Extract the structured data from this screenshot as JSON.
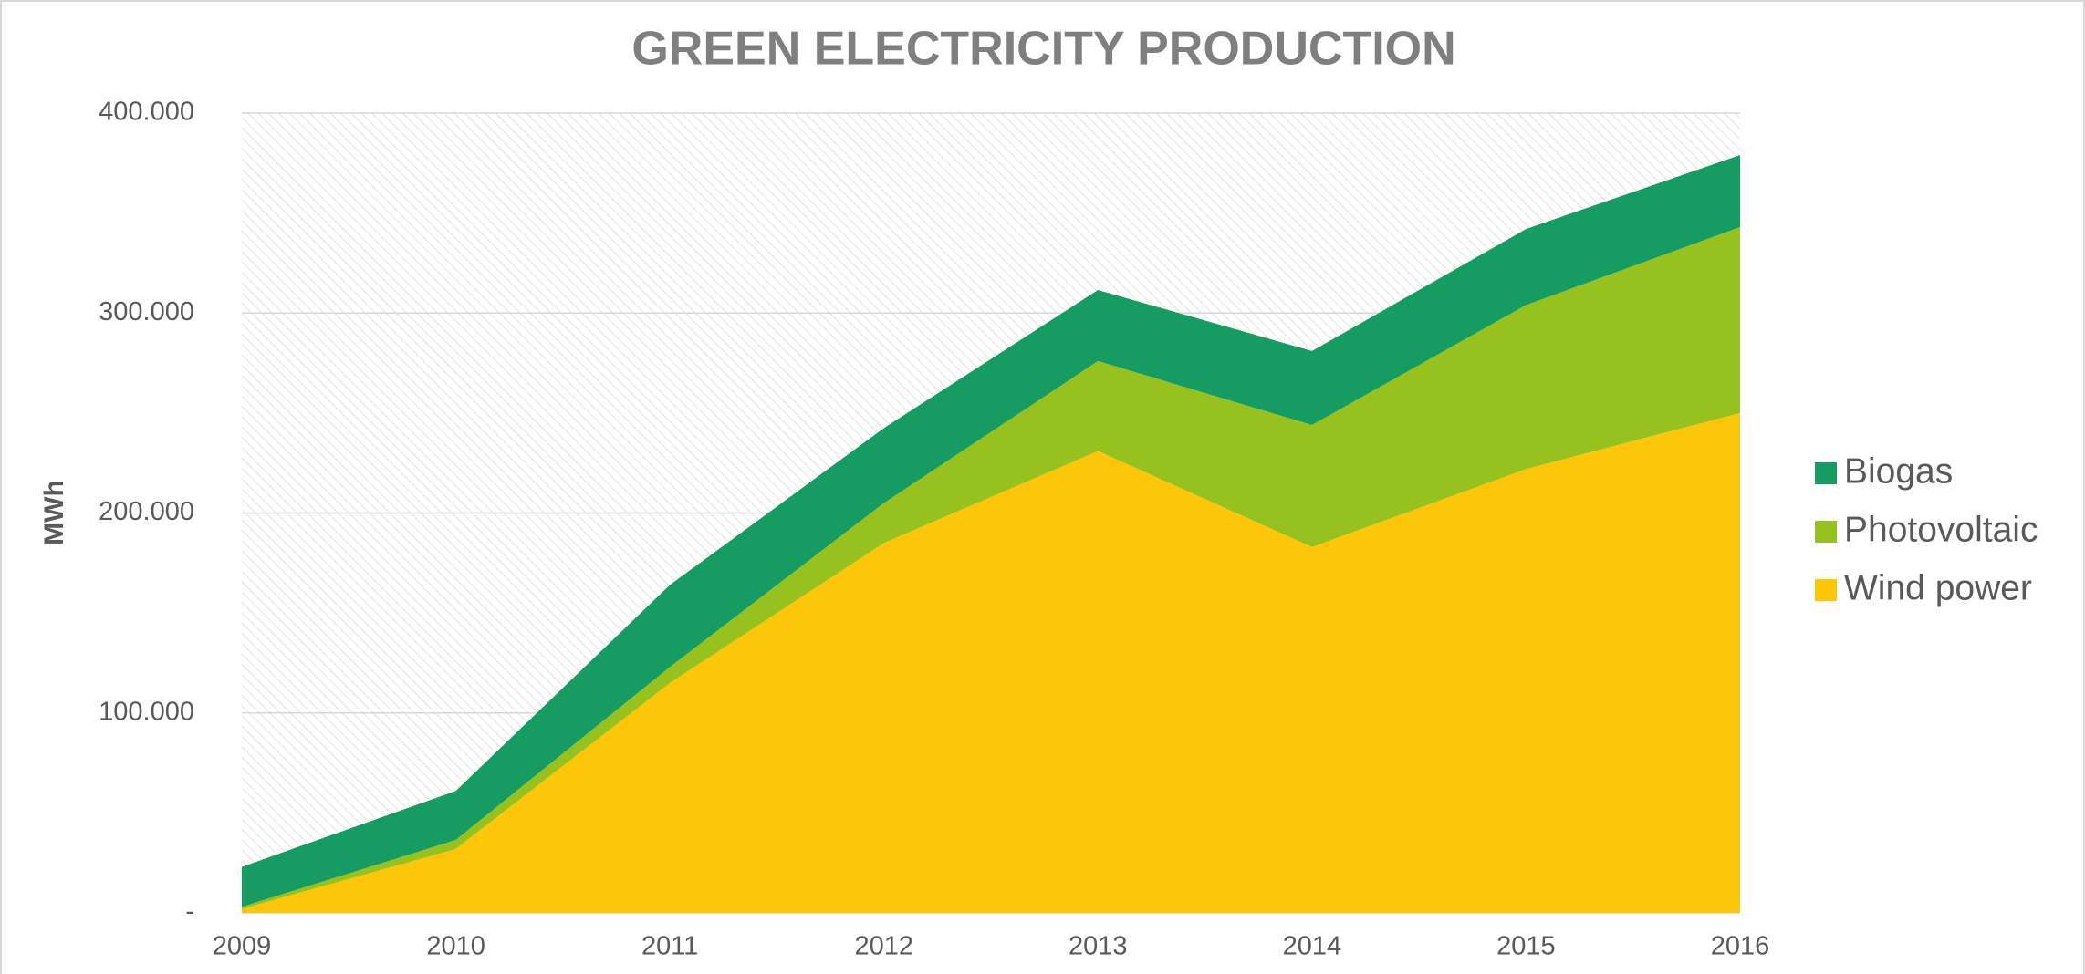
{
  "chart_data": {
    "type": "stacked_area",
    "title": "GREEN ELECTRICITY PRODUCTION",
    "y_label": "MWh",
    "categories": [
      "2009",
      "2010",
      "2011",
      "2012",
      "2013",
      "2014",
      "2015",
      "2016"
    ],
    "series": [
      {
        "name": "Wind power",
        "color": "#fcc60a",
        "values": [
          2000,
          32000,
          115000,
          185000,
          231000,
          183000,
          222000,
          250000
        ]
      },
      {
        "name": "Photovoltaic",
        "color": "#96c11f",
        "values": [
          1000,
          4500,
          8000,
          20000,
          45000,
          61000,
          82000,
          93000
        ]
      },
      {
        "name": "Biogas",
        "color": "#169b62",
        "values": [
          20000,
          24500,
          41000,
          37500,
          35500,
          37000,
          38000,
          36000
        ]
      }
    ],
    "ylim": [
      0,
      400000
    ],
    "yticks": [
      {
        "value": 0,
        "label": "-"
      },
      {
        "value": 100000,
        "label": "100.000"
      },
      {
        "value": 200000,
        "label": "200.000"
      },
      {
        "value": 300000,
        "label": "300.000"
      },
      {
        "value": 400000,
        "label": "400.000"
      }
    ],
    "grid": true,
    "legend": "right"
  }
}
